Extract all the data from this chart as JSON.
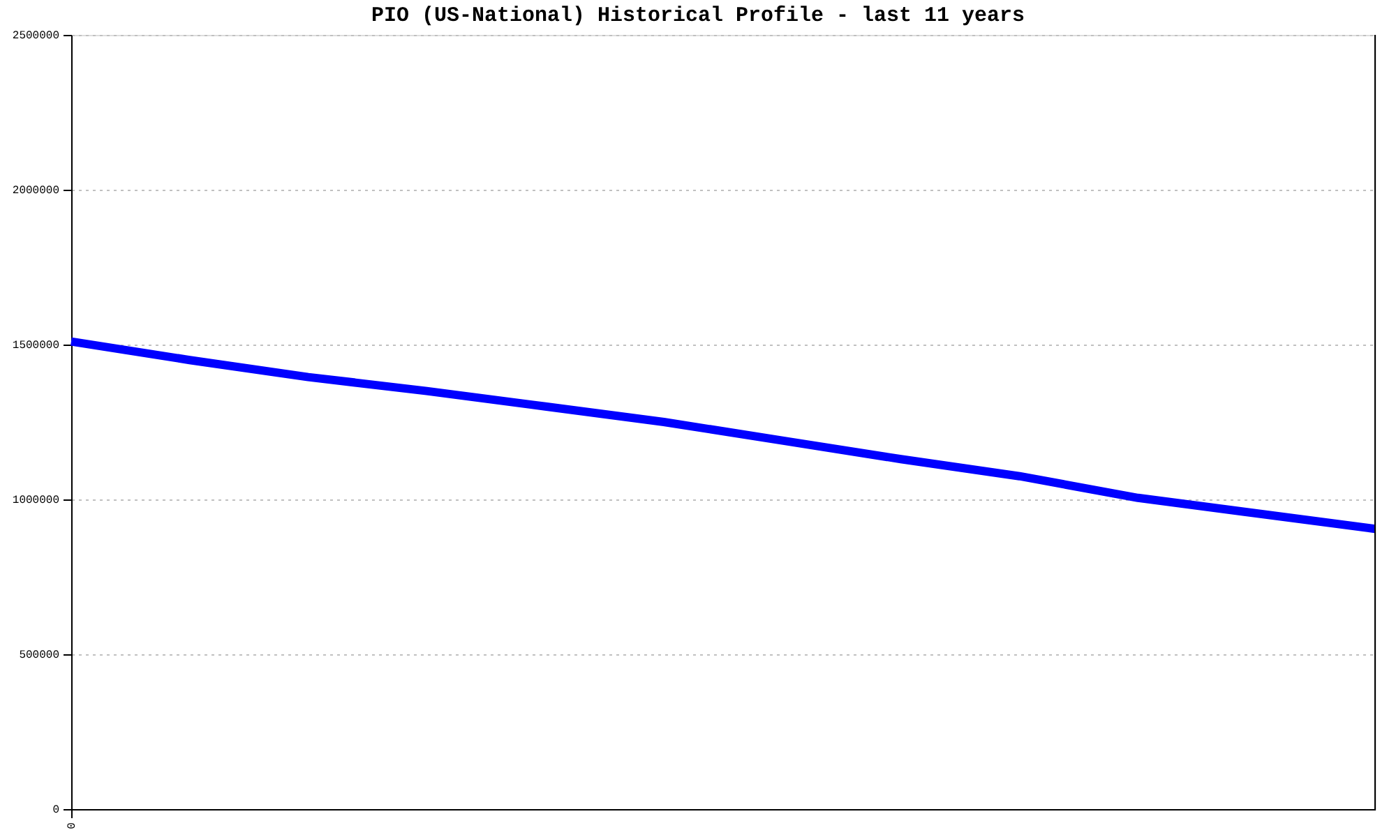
{
  "chart_data": {
    "type": "line",
    "title": "PIO (US-National) Historical Profile - last 11 years",
    "categories": [
      "0",
      null,
      null,
      null,
      null,
      null,
      null,
      null,
      null,
      null,
      null,
      null
    ],
    "series": [
      {
        "color": "#0000ff",
        "values": [
          1510000,
          1450000,
          1395000,
          1350000,
          1300000,
          1250000,
          1190000,
          1130000,
          1075000,
          1005000,
          955000,
          905000
        ]
      }
    ],
    "ylim": [
      0,
      2500000
    ],
    "yticks": [
      0,
      500000,
      1000000,
      1500000,
      2000000,
      2500000
    ],
    "grid": "y",
    "line_style": "solid"
  }
}
